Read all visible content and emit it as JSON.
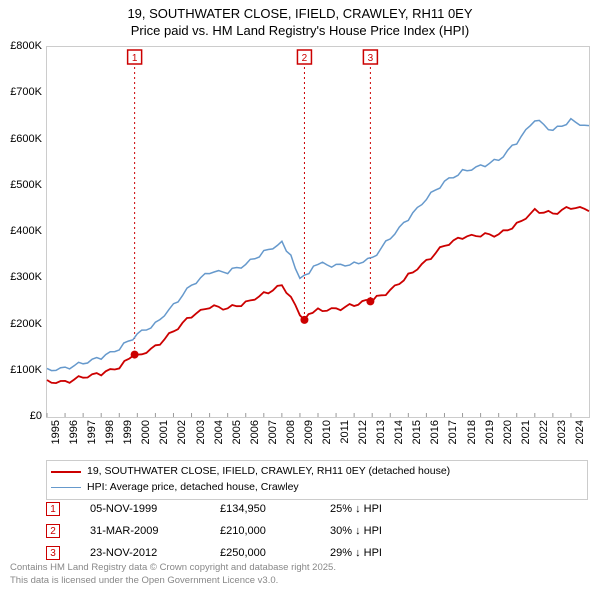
{
  "title_line1": "19, SOUTHWATER CLOSE, IFIELD, CRAWLEY, RH11 0EY",
  "title_line2": "Price paid vs. HM Land Registry's House Price Index (HPI)",
  "chart": {
    "type": "line",
    "background_color": "#ffffff",
    "border_color": "#cccccc",
    "ylim": [
      0,
      800000
    ],
    "ytick_step": 100000,
    "y_labels": [
      "£0",
      "£100K",
      "£200K",
      "£300K",
      "£400K",
      "£500K",
      "£600K",
      "£700K",
      "£800K"
    ],
    "xlim": [
      1995,
      2025
    ],
    "x_labels": [
      "1995",
      "1996",
      "1997",
      "1998",
      "1999",
      "2000",
      "2001",
      "2002",
      "2003",
      "2004",
      "2005",
      "2006",
      "2007",
      "2008",
      "2009",
      "2010",
      "2011",
      "2012",
      "2013",
      "2014",
      "2015",
      "2016",
      "2017",
      "2018",
      "2019",
      "2020",
      "2021",
      "2022",
      "2023",
      "2024"
    ],
    "series": [
      {
        "name": "19, SOUTHWATER CLOSE, IFIELD, CRAWLEY, RH11 0EY (detached house)",
        "color": "#cc0000",
        "line_width": 1.8,
        "data": [
          [
            1995,
            80000
          ],
          [
            1996,
            78000
          ],
          [
            1997,
            85000
          ],
          [
            1998,
            90000
          ],
          [
            1999,
            105000
          ],
          [
            1999.85,
            134950
          ],
          [
            2000,
            135000
          ],
          [
            2001,
            155000
          ],
          [
            2002,
            185000
          ],
          [
            2003,
            215000
          ],
          [
            2004,
            235000
          ],
          [
            2005,
            235000
          ],
          [
            2006,
            250000
          ],
          [
            2007,
            270000
          ],
          [
            2008,
            285000
          ],
          [
            2008.5,
            260000
          ],
          [
            2009,
            220000
          ],
          [
            2009.25,
            210000
          ],
          [
            2009.7,
            225000
          ],
          [
            2010,
            235000
          ],
          [
            2011,
            235000
          ],
          [
            2012,
            240000
          ],
          [
            2012.9,
            250000
          ],
          [
            2013,
            250000
          ],
          [
            2014,
            275000
          ],
          [
            2015,
            310000
          ],
          [
            2016,
            340000
          ],
          [
            2017,
            370000
          ],
          [
            2018,
            385000
          ],
          [
            2019,
            390000
          ],
          [
            2020,
            395000
          ],
          [
            2021,
            420000
          ],
          [
            2022,
            450000
          ],
          [
            2023,
            440000
          ],
          [
            2024,
            450000
          ],
          [
            2025,
            445000
          ]
        ]
      },
      {
        "name": "HPI: Average price, detached house, Crawley",
        "color": "#6699cc",
        "line_width": 1.5,
        "data": [
          [
            1995,
            105000
          ],
          [
            1996,
            108000
          ],
          [
            1997,
            115000
          ],
          [
            1998,
            125000
          ],
          [
            1999,
            145000
          ],
          [
            2000,
            180000
          ],
          [
            2001,
            205000
          ],
          [
            2002,
            245000
          ],
          [
            2003,
            285000
          ],
          [
            2004,
            310000
          ],
          [
            2005,
            310000
          ],
          [
            2006,
            330000
          ],
          [
            2007,
            360000
          ],
          [
            2008,
            380000
          ],
          [
            2008.5,
            350000
          ],
          [
            2009,
            300000
          ],
          [
            2009.5,
            310000
          ],
          [
            2010,
            330000
          ],
          [
            2011,
            330000
          ],
          [
            2012,
            335000
          ],
          [
            2013,
            345000
          ],
          [
            2014,
            385000
          ],
          [
            2015,
            425000
          ],
          [
            2016,
            470000
          ],
          [
            2017,
            510000
          ],
          [
            2018,
            535000
          ],
          [
            2019,
            545000
          ],
          [
            2020,
            555000
          ],
          [
            2021,
            590000
          ],
          [
            2022,
            640000
          ],
          [
            2023,
            620000
          ],
          [
            2024,
            645000
          ],
          [
            2025,
            630000
          ]
        ]
      }
    ],
    "markers": [
      {
        "label": "1",
        "x": 1999.85,
        "y": 134950,
        "color": "#cc0000"
      },
      {
        "label": "2",
        "x": 2009.25,
        "y": 210000,
        "color": "#cc0000"
      },
      {
        "label": "3",
        "x": 2012.9,
        "y": 250000,
        "color": "#cc0000"
      }
    ]
  },
  "legend": {
    "items": [
      {
        "color": "#cc0000",
        "width": 2,
        "label": "19, SOUTHWATER CLOSE, IFIELD, CRAWLEY, RH11 0EY (detached house)"
      },
      {
        "color": "#6699cc",
        "width": 1.5,
        "label": "HPI: Average price, detached house, Crawley"
      }
    ]
  },
  "events": [
    {
      "n": "1",
      "date": "05-NOV-1999",
      "price": "£134,950",
      "diff": "25% ↓ HPI",
      "color": "#cc0000"
    },
    {
      "n": "2",
      "date": "31-MAR-2009",
      "price": "£210,000",
      "diff": "30% ↓ HPI",
      "color": "#cc0000"
    },
    {
      "n": "3",
      "date": "23-NOV-2012",
      "price": "£250,000",
      "diff": "29% ↓ HPI",
      "color": "#cc0000"
    }
  ],
  "footer_line1": "Contains HM Land Registry data © Crown copyright and database right 2025.",
  "footer_line2": "This data is licensed under the Open Government Licence v3.0."
}
